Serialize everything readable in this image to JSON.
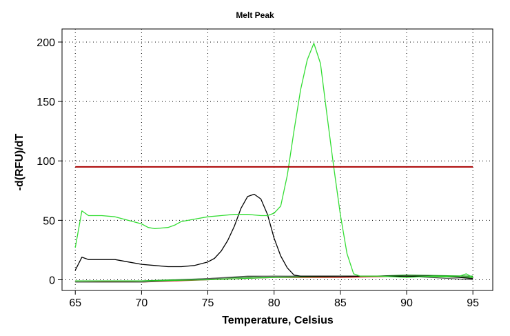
{
  "chart_data": {
    "type": "line",
    "title": "Melt Peak",
    "xlabel": "Temperature, Celsius",
    "ylabel": "-d(RFU)/dT",
    "xlim": [
      64,
      96.5
    ],
    "ylim": [
      -9,
      211
    ],
    "xticks": [
      65,
      70,
      75,
      80,
      85,
      90,
      95
    ],
    "yticks": [
      0,
      50,
      100,
      150,
      200
    ],
    "grid": true,
    "threshold": {
      "value": 95,
      "color": "#aa0000"
    },
    "series": [
      {
        "color": "#33dd33",
        "x": [
          65,
          65.5,
          66,
          67,
          68,
          69,
          70,
          70.5,
          71,
          72,
          72.5,
          73,
          74,
          75,
          76,
          77,
          78,
          79,
          79.5,
          80,
          80.5,
          81,
          81.5,
          82,
          82.5,
          83,
          83.5,
          84,
          84.5,
          85,
          85.5,
          86,
          86.5,
          87,
          88,
          90,
          92,
          94,
          94.5,
          95
        ],
        "y": [
          27,
          58,
          54,
          54,
          53,
          50,
          47,
          44,
          43,
          44,
          46,
          49,
          51,
          53,
          54,
          55,
          55,
          54,
          54,
          56,
          62,
          88,
          125,
          160,
          185,
          199,
          182,
          138,
          95,
          55,
          22,
          5,
          3,
          3,
          3,
          2,
          3,
          3,
          5,
          2
        ]
      },
      {
        "color": "#000000",
        "x": [
          65,
          65.5,
          66,
          67,
          68,
          69,
          70,
          71,
          72,
          73,
          74,
          75,
          75.5,
          76,
          76.5,
          77,
          77.5,
          78,
          78.5,
          79,
          79.5,
          80,
          80.5,
          81,
          81.5,
          82,
          83,
          85,
          87,
          89,
          91,
          93,
          95
        ],
        "y": [
          8,
          19,
          17,
          17,
          17,
          15,
          13,
          12,
          11,
          11,
          12,
          15,
          18,
          24,
          33,
          45,
          60,
          70,
          72,
          68,
          55,
          35,
          20,
          10,
          4,
          3,
          3,
          3,
          3,
          3,
          3,
          3,
          1
        ]
      },
      {
        "color": "#22cc22",
        "x": [
          65,
          70,
          75,
          80,
          85,
          90,
          95
        ],
        "y": [
          -1,
          -1,
          0,
          2,
          3,
          3,
          2
        ]
      },
      {
        "color": "#555555",
        "x": [
          65,
          70,
          75,
          78,
          80,
          85,
          90,
          95
        ],
        "y": [
          -2,
          -2,
          1,
          3,
          3,
          3,
          3,
          0
        ]
      },
      {
        "color": "#cc2222",
        "x": [
          65,
          70,
          75,
          80,
          85,
          90,
          95
        ],
        "y": [
          -1,
          -2,
          0,
          2,
          2,
          3,
          2
        ]
      },
      {
        "color": "#1a8f1a",
        "x": [
          65,
          70,
          75,
          80,
          85,
          90,
          95
        ],
        "y": [
          -1,
          -1,
          1,
          3,
          2,
          4,
          3
        ]
      }
    ]
  }
}
